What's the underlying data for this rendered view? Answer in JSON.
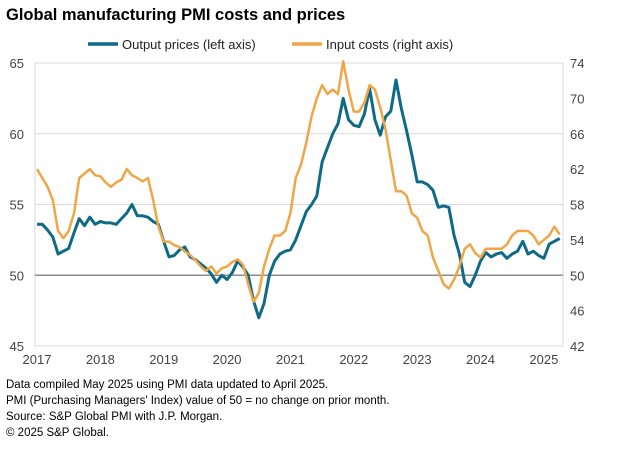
{
  "chart_data": {
    "type": "line",
    "title": "Global manufacturing PMI costs and prices",
    "x_start": "2017-01",
    "x_end": "2025-04",
    "frequency": "monthly",
    "x_tick_labels": [
      "2017",
      "2018",
      "2019",
      "2020",
      "2021",
      "2022",
      "2023",
      "2024",
      "2025"
    ],
    "left_axis": {
      "ylim": [
        45,
        65
      ],
      "ticks": [
        45,
        50,
        55,
        60,
        65
      ]
    },
    "right_axis": {
      "ylim": [
        42,
        74
      ],
      "ticks": [
        42,
        46,
        50,
        54,
        58,
        62,
        66,
        70,
        74
      ]
    },
    "reference_line": 50,
    "grid": "horizontal",
    "legend_position": "top",
    "series": [
      {
        "name": "Output prices (left axis)",
        "axis": "left",
        "color": "#0f6a86",
        "values": [
          53.6,
          53.6,
          53.2,
          52.7,
          51.5,
          51.7,
          51.9,
          53.0,
          54.0,
          53.5,
          54.1,
          53.6,
          53.8,
          53.7,
          53.7,
          53.6,
          54.0,
          54.4,
          55.0,
          54.2,
          54.2,
          54.1,
          53.8,
          53.6,
          52.4,
          51.3,
          51.4,
          51.8,
          52.0,
          51.3,
          51.1,
          50.8,
          50.5,
          50.1,
          49.5,
          50.0,
          49.7,
          50.2,
          51.0,
          50.6,
          50.0,
          48.2,
          47.0,
          48.0,
          50.0,
          51.0,
          51.5,
          51.7,
          51.8,
          52.5,
          53.5,
          54.5,
          55.0,
          55.6,
          58.0,
          59.0,
          60.0,
          60.7,
          62.5,
          61.0,
          60.6,
          60.5,
          61.4,
          63.2,
          61.0,
          59.9,
          61.2,
          61.6,
          63.8,
          61.8,
          60.2,
          58.5,
          56.6,
          56.6,
          56.4,
          56.0,
          54.8,
          54.9,
          54.8,
          52.8,
          51.5,
          49.5,
          49.2,
          50.0,
          51.0,
          51.6,
          51.3,
          51.5,
          51.6,
          51.2,
          51.5,
          51.7,
          52.4,
          51.5,
          51.7,
          51.4,
          51.2,
          52.2,
          52.4,
          52.6
        ]
      },
      {
        "name": "Input costs (right axis)",
        "axis": "right",
        "color": "#f0a646",
        "values": [
          62.0,
          61.0,
          60.0,
          58.5,
          55.0,
          54.2,
          55.0,
          57.0,
          61.0,
          61.5,
          62.0,
          61.3,
          61.2,
          60.5,
          60.0,
          60.5,
          60.8,
          62.0,
          61.3,
          61.0,
          60.6,
          61.0,
          58.5,
          55.5,
          53.8,
          53.8,
          53.4,
          53.2,
          52.7,
          52.3,
          51.7,
          51.0,
          50.5,
          51.0,
          50.2,
          50.8,
          51.0,
          51.5,
          51.8,
          51.2,
          49.0,
          47.0,
          48.0,
          51.0,
          53.0,
          54.5,
          54.5,
          55.0,
          57.0,
          61.0,
          62.5,
          65.0,
          68.0,
          70.0,
          71.5,
          70.5,
          71.0,
          70.5,
          74.2,
          71.0,
          68.5,
          68.5,
          69.5,
          71.5,
          71.0,
          69.0,
          66.5,
          63.0,
          59.5,
          59.5,
          59.0,
          57.0,
          56.5,
          55.0,
          54.5,
          52.0,
          50.5,
          49.0,
          48.5,
          49.5,
          51.0,
          53.0,
          53.5,
          52.5,
          52.0,
          53.0,
          53.0,
          53.0,
          53.0,
          53.5,
          54.5,
          55.0,
          55.0,
          55.0,
          54.5,
          53.5,
          54.0,
          54.5,
          55.5,
          54.6
        ]
      }
    ]
  },
  "notes": [
    "Data compiled May  2025 using PMI data updated to April 2025.",
    "PMI (Purchasing Managers' Index) value of 50 = no change on prior month.",
    "Source: S&P Global PMI with J.P. Morgan.",
    "© 2025 S&P Global."
  ]
}
